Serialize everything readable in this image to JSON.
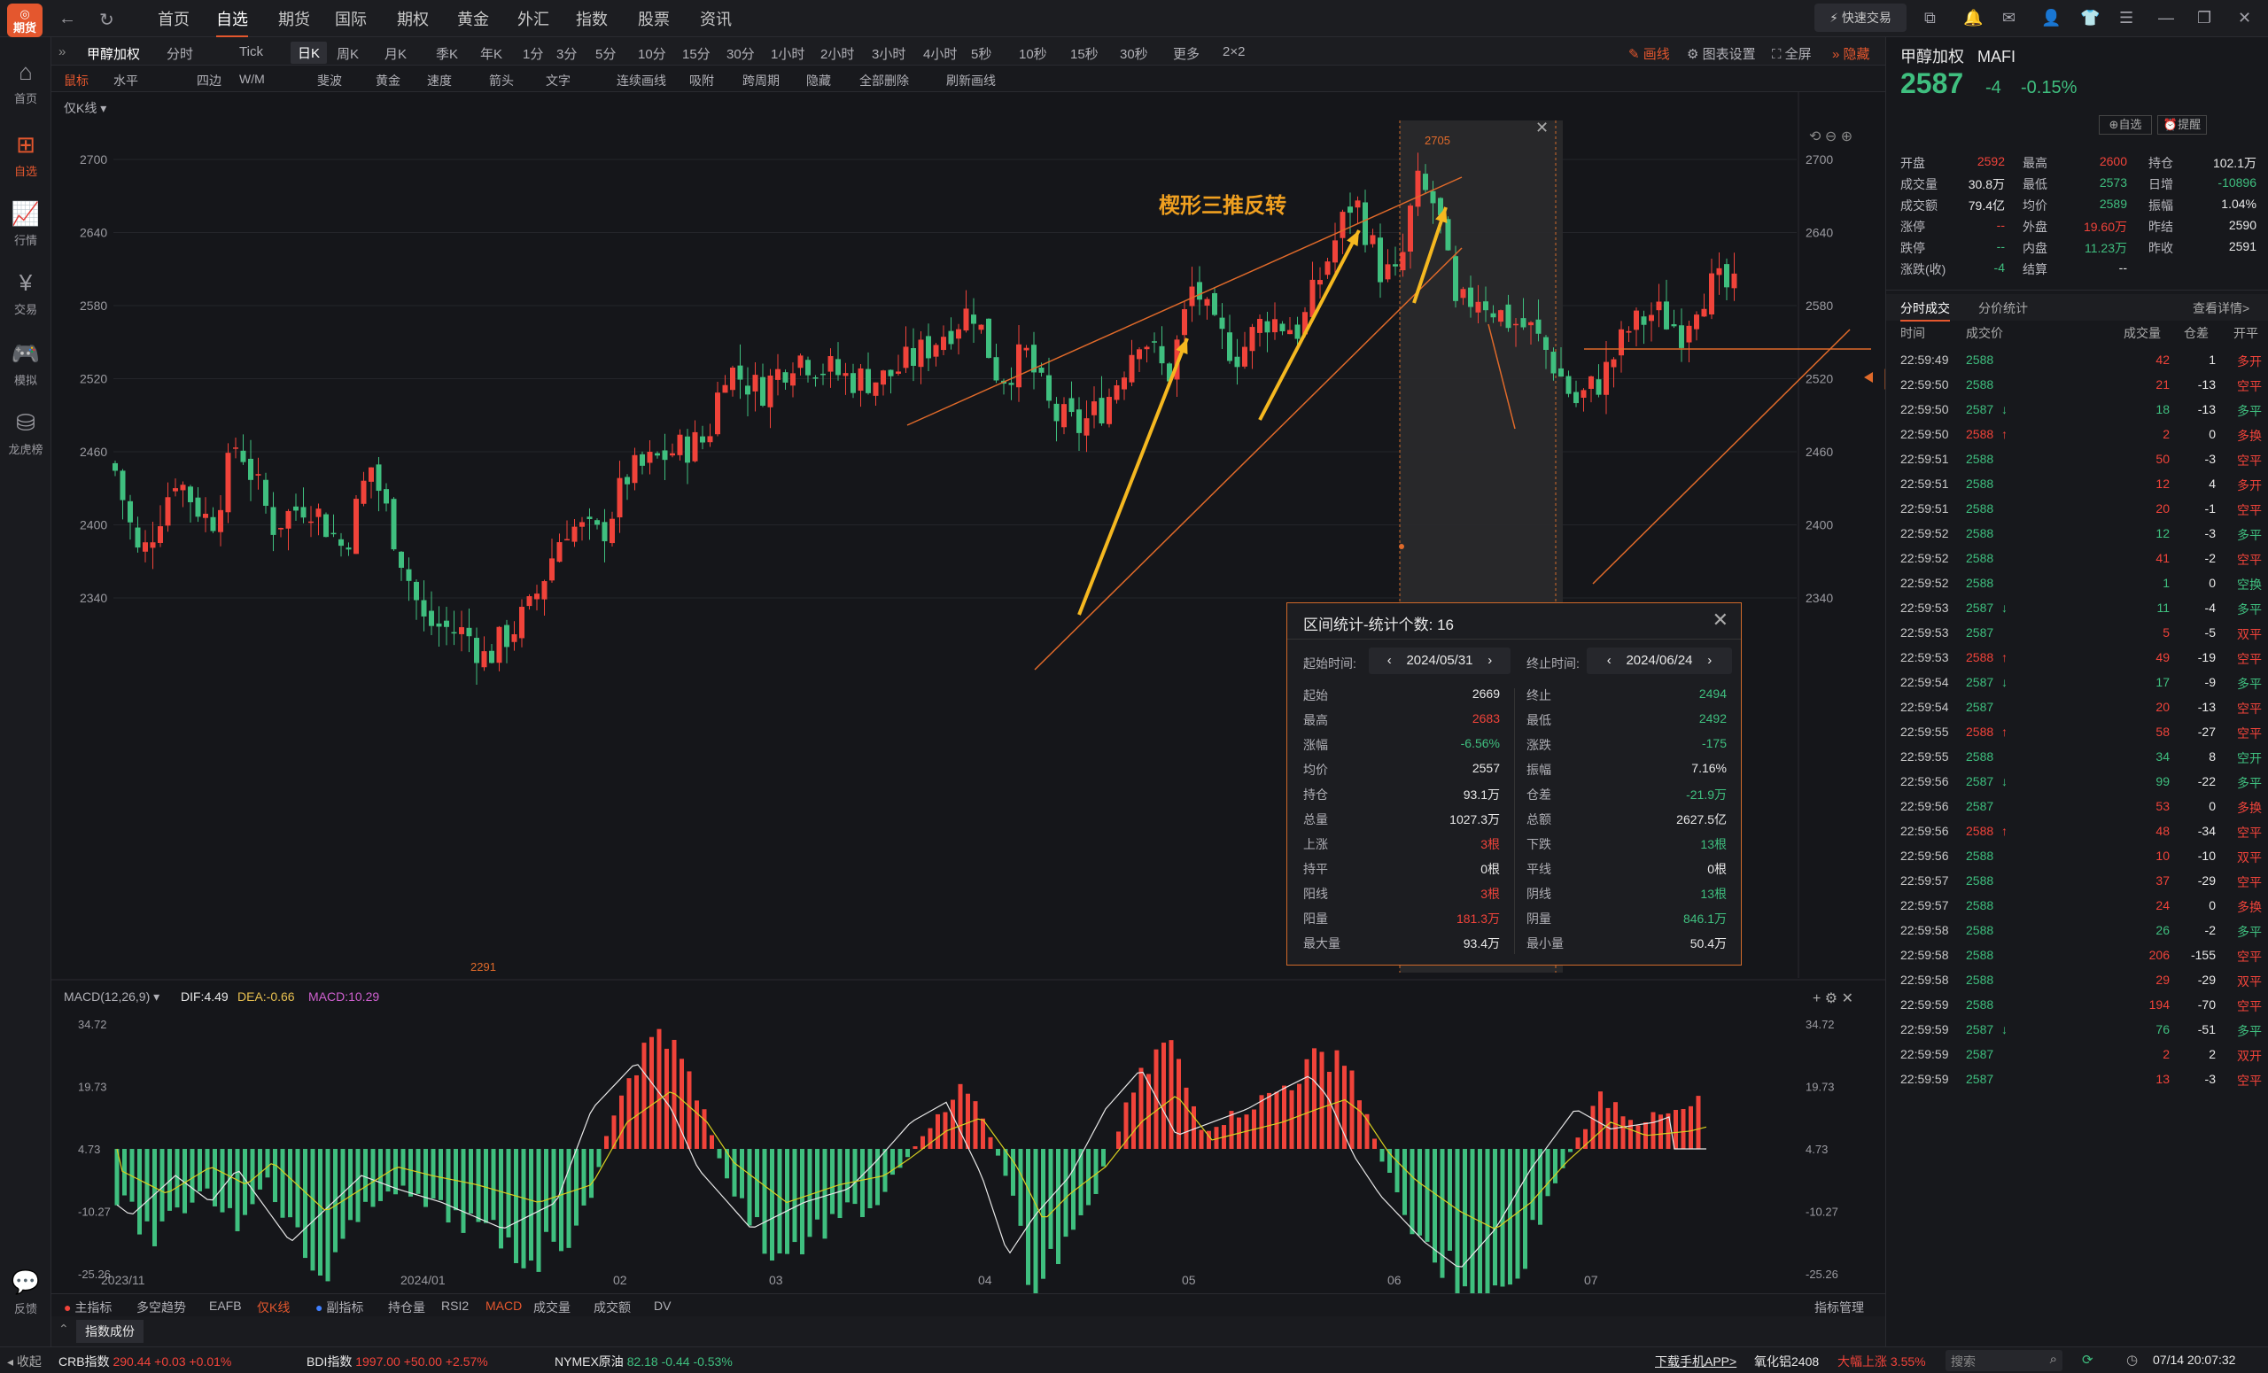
{
  "app": {
    "logo": "期货",
    "tabs": [
      "首页",
      "自选",
      "期货",
      "国际",
      "期权",
      "黄金",
      "外汇",
      "指数",
      "股票",
      "资讯"
    ],
    "active_tab": "自选",
    "quick_trade": "快速交易"
  },
  "left_nav": [
    {
      "label": "首页",
      "icon": "⌂"
    },
    {
      "label": "自选",
      "icon": "⊞",
      "active": true
    },
    {
      "label": "行情",
      "icon": "📈"
    },
    {
      "label": "交易",
      "icon": "¥"
    },
    {
      "label": "模拟",
      "icon": "🎮"
    },
    {
      "label": "龙虎榜",
      "icon": "⛁"
    },
    {
      "label": "反馈",
      "icon": "💬"
    }
  ],
  "period_bar": {
    "symbol": "甲醇加权",
    "items": [
      "分时",
      "Tick",
      "日K",
      "周K",
      "月K",
      "季K",
      "年K",
      "1分",
      "3分",
      "5分",
      "10分",
      "15分",
      "30分",
      "1小时",
      "2小时",
      "3小时",
      "4小时",
      "5秒",
      "10秒",
      "15秒",
      "30秒",
      "更多",
      "2×2"
    ],
    "active": "日K",
    "right": [
      "画线",
      "图表设置",
      "全屏",
      "隐藏"
    ]
  },
  "draw_bar": [
    "鼠标",
    "水平",
    "四边",
    "W/M",
    "斐波",
    "黄金",
    "速度",
    "箭头",
    "文字",
    "连续画线",
    "吸附",
    "跨周期",
    "隐藏",
    "全部删除",
    "刷新画线"
  ],
  "chart_mode": "仅K线",
  "annotation": "楔形三推反转",
  "price_axis": [
    "2700",
    "2640",
    "2580",
    "2520",
    "2460",
    "2400",
    "2340"
  ],
  "current_price_tag": "2587",
  "high_label": "2705",
  "low_label": "2291",
  "macd": {
    "label": "MACD(12,26,9)",
    "dif": "DIF:4.49",
    "dea": "DEA:-0.66",
    "macd": "MACD:10.29",
    "axis": [
      "34.72",
      "19.73",
      "4.73",
      "-10.27",
      "-25.26"
    ]
  },
  "date_axis": [
    "2023/11",
    "2024/01",
    "02",
    "03",
    "04",
    "05",
    "06",
    "07"
  ],
  "stats": {
    "title": "区间统计-统计个数: 16",
    "start_label": "起始时间:",
    "start": "2024/05/31",
    "end_label": "终止时间:",
    "end": "2024/06/24",
    "rows": [
      [
        "起始",
        "2669",
        "终止",
        "2494"
      ],
      [
        "最高",
        "2683",
        "最低",
        "2492"
      ],
      [
        "涨幅",
        "-6.56%",
        "涨跌",
        "-175"
      ],
      [
        "均价",
        "2557",
        "振幅",
        "7.16%"
      ],
      [
        "持仓",
        "93.1万",
        "仓差",
        "-21.9万"
      ],
      [
        "总量",
        "1027.3万",
        "总额",
        "2627.5亿"
      ],
      [
        "上涨",
        "3根",
        "下跌",
        "13根"
      ],
      [
        "持平",
        "0根",
        "平线",
        "0根"
      ],
      [
        "阳线",
        "3根",
        "阴线",
        "13根"
      ],
      [
        "阳量",
        "181.3万",
        "阴量",
        "846.1万"
      ],
      [
        "最大量",
        "93.4万",
        "最小量",
        "50.4万"
      ]
    ],
    "colors": [
      [
        "white",
        "green"
      ],
      [
        "red",
        "green"
      ],
      [
        "green",
        "green"
      ],
      [
        "white",
        "white"
      ],
      [
        "white",
        "green"
      ],
      [
        "white",
        "white"
      ],
      [
        "red",
        "green"
      ],
      [
        "white",
        "white"
      ],
      [
        "red",
        "green"
      ],
      [
        "red",
        "green"
      ],
      [
        "white",
        "white"
      ]
    ]
  },
  "indicator_bar": [
    "主指标",
    "多空趋势",
    "EAFB",
    "仅K线",
    "副指标",
    "持仓量",
    "RSI2",
    "MACD",
    "成交量",
    "成交额",
    "DV"
  ],
  "indicator_mgmt": "指标管理",
  "indicator_tab": "指数成份",
  "quote": {
    "name": "甲醇加权",
    "code": "MAFI",
    "price": "2587",
    "change": "-4",
    "pct": "-0.15%",
    "btn1": "自选",
    "btn2": "提醒",
    "rows": [
      [
        "开盘",
        "2592",
        "red",
        "最高",
        "2600",
        "red",
        "持仓",
        "102.1万",
        "white"
      ],
      [
        "成交量",
        "30.8万",
        "white",
        "最低",
        "2573",
        "green",
        "日增",
        "-10896",
        "green"
      ],
      [
        "成交额",
        "79.4亿",
        "white",
        "均价",
        "2589",
        "green",
        "振幅",
        "1.04%",
        "white"
      ],
      [
        "涨停",
        "--",
        "red",
        "外盘",
        "19.60万",
        "red",
        "昨结",
        "2590",
        "white"
      ],
      [
        "跌停",
        "--",
        "green",
        "内盘",
        "11.23万",
        "green",
        "昨收",
        "2591",
        "white"
      ],
      [
        "涨跌(收)",
        "-4",
        "green",
        "结算",
        "--",
        "white",
        "",
        "",
        ""
      ]
    ]
  },
  "tabs2": [
    "分时成交",
    "分价统计"
  ],
  "detail_link": "查看详情>",
  "trade_head": [
    "时间",
    "成交价",
    "成交量",
    "仓差",
    "开平"
  ],
  "trades": [
    [
      "22:59:49",
      "2588",
      "",
      "42",
      "1",
      "多开"
    ],
    [
      "22:59:50",
      "2588",
      "",
      "21",
      "-13",
      "空平"
    ],
    [
      "22:59:50",
      "2587",
      "↓",
      "18",
      "-13",
      "多平"
    ],
    [
      "22:59:50",
      "2588",
      "↑",
      "2",
      "0",
      "多换"
    ],
    [
      "22:59:51",
      "2588",
      "",
      "50",
      "-3",
      "空平"
    ],
    [
      "22:59:51",
      "2588",
      "",
      "12",
      "4",
      "多开"
    ],
    [
      "22:59:51",
      "2588",
      "",
      "20",
      "-1",
      "空平"
    ],
    [
      "22:59:52",
      "2588",
      "",
      "12",
      "-3",
      "多平"
    ],
    [
      "22:59:52",
      "2588",
      "",
      "41",
      "-2",
      "空平"
    ],
    [
      "22:59:52",
      "2588",
      "",
      "1",
      "0",
      "空换"
    ],
    [
      "22:59:53",
      "2587",
      "↓",
      "11",
      "-4",
      "多平"
    ],
    [
      "22:59:53",
      "2587",
      "",
      "5",
      "-5",
      "双平"
    ],
    [
      "22:59:53",
      "2588",
      "↑",
      "49",
      "-19",
      "空平"
    ],
    [
      "22:59:54",
      "2587",
      "↓",
      "17",
      "-9",
      "多平"
    ],
    [
      "22:59:54",
      "2587",
      "",
      "20",
      "-13",
      "空平"
    ],
    [
      "22:59:55",
      "2588",
      "↑",
      "58",
      "-27",
      "空平"
    ],
    [
      "22:59:55",
      "2588",
      "",
      "34",
      "8",
      "空开"
    ],
    [
      "22:59:56",
      "2587",
      "↓",
      "99",
      "-22",
      "多平"
    ],
    [
      "22:59:56",
      "2587",
      "",
      "53",
      "0",
      "多换"
    ],
    [
      "22:59:56",
      "2588",
      "↑",
      "48",
      "-34",
      "空平"
    ],
    [
      "22:59:56",
      "2588",
      "",
      "10",
      "-10",
      "双平"
    ],
    [
      "22:59:57",
      "2588",
      "",
      "37",
      "-29",
      "空平"
    ],
    [
      "22:59:57",
      "2588",
      "",
      "24",
      "0",
      "多换"
    ],
    [
      "22:59:58",
      "2588",
      "",
      "26",
      "-2",
      "多平"
    ],
    [
      "22:59:58",
      "2588",
      "",
      "206",
      "-155",
      "空平"
    ],
    [
      "22:59:58",
      "2588",
      "",
      "29",
      "-29",
      "双平"
    ],
    [
      "22:59:59",
      "2588",
      "",
      "194",
      "-70",
      "空平"
    ],
    [
      "22:59:59",
      "2587",
      "↓",
      "76",
      "-51",
      "多平"
    ],
    [
      "22:59:59",
      "2587",
      "",
      "2",
      "2",
      "双开"
    ],
    [
      "22:59:59",
      "2587",
      "",
      "13",
      "-3",
      "空平"
    ]
  ],
  "bottom": {
    "left": "收起",
    "items": [
      [
        "CRB指数",
        "290.44",
        "+0.03",
        "+0.01%"
      ],
      [
        "BDI指数",
        "1997.00",
        "+50.00",
        "+2.57%"
      ],
      [
        "NYMEX原油",
        "82.18",
        "-0.44",
        "-0.53%"
      ]
    ],
    "app": "下载手机APP>",
    "news": "氧化铝2408",
    "news2": "大幅上涨 3.55%",
    "search": "搜索",
    "time": "07/14 20:07:32"
  }
}
